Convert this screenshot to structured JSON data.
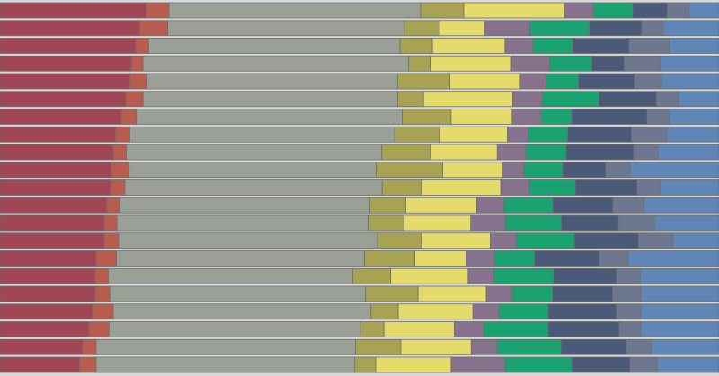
{
  "chart_data": {
    "type": "bar",
    "orientation": "horizontal",
    "stacked": true,
    "normalized_percent": true,
    "title": "",
    "xlabel": "",
    "ylabel": "",
    "xlim": [
      0,
      100
    ],
    "grid": false,
    "legend": "none",
    "colors": [
      "#a14655",
      "#b85c4e",
      "#9aa096",
      "#a8a352",
      "#e5db6a",
      "#87728e",
      "#1aa270",
      "#4a5a78",
      "#6d7890",
      "#5f86b6"
    ],
    "rows": [
      [
        20.4,
        3.1,
        35.0,
        6.0,
        14.0,
        4.0,
        5.5,
        4.8,
        3.0,
        4.2
      ],
      [
        19.5,
        3.9,
        33.0,
        4.9,
        6.3,
        6.3,
        8.3,
        7.3,
        3.0,
        7.8
      ],
      [
        18.9,
        1.8,
        35.0,
        4.5,
        10.1,
        3.9,
        5.5,
        7.9,
        5.6,
        6.9
      ],
      [
        18.3,
        1.6,
        37.0,
        3.0,
        11.3,
        5.3,
        5.9,
        4.5,
        5.1,
        8.1
      ],
      [
        18.1,
        2.4,
        34.9,
        7.3,
        9.8,
        3.6,
        4.5,
        7.8,
        3.8,
        8.0
      ],
      [
        17.5,
        2.4,
        35.4,
        3.6,
        12.4,
        4.1,
        7.9,
        8.0,
        3.1,
        5.6
      ],
      [
        16.9,
        2.1,
        37.0,
        6.8,
        8.5,
        4.0,
        4.3,
        10.5,
        3.1,
        6.9
      ],
      [
        16.1,
        2.0,
        36.9,
        6.3,
        9.4,
        2.9,
        5.5,
        8.9,
        4.9,
        7.3
      ],
      [
        15.8,
        1.8,
        35.6,
        6.8,
        9.3,
        4.0,
        5.6,
        9.4,
        3.4,
        8.5
      ],
      [
        15.5,
        2.5,
        34.4,
        9.3,
        8.4,
        2.9,
        5.4,
        6.0,
        3.4,
        12.4
      ],
      [
        15.4,
        2.0,
        35.8,
        5.4,
        11.1,
        4.0,
        6.4,
        8.6,
        3.3,
        8.1
      ],
      [
        14.9,
        1.8,
        34.9,
        5.0,
        9.9,
        3.8,
        6.8,
        8.4,
        4.3,
        10.5
      ],
      [
        14.5,
        1.8,
        35.1,
        4.9,
        9.3,
        4.8,
        7.8,
        8.0,
        5.0,
        9.0
      ],
      [
        14.5,
        2.0,
        36.0,
        6.1,
        9.6,
        3.6,
        8.1,
        8.9,
        4.8,
        6.4
      ],
      [
        13.4,
        2.8,
        34.5,
        7.0,
        7.1,
        4.0,
        5.5,
        9.1,
        4.0,
        12.6
      ],
      [
        13.3,
        1.8,
        34.1,
        5.3,
        10.8,
        3.6,
        8.3,
        8.8,
        3.3,
        11.0
      ],
      [
        13.3,
        2.0,
        35.6,
        7.3,
        9.5,
        3.6,
        5.6,
        8.4,
        3.9,
        10.9
      ],
      [
        12.9,
        2.9,
        35.9,
        3.8,
        10.4,
        3.6,
        6.9,
        9.5,
        3.4,
        10.9
      ],
      [
        12.4,
        2.8,
        35.0,
        3.3,
        9.8,
        4.1,
        9.0,
        9.9,
        3.0,
        10.9
      ],
      [
        11.5,
        1.9,
        36.1,
        6.3,
        9.8,
        3.6,
        8.9,
        9.1,
        3.5,
        9.4
      ],
      [
        11.1,
        2.3,
        36.0,
        2.9,
        10.5,
        7.5,
        9.3,
        8.1,
        3.8,
        8.6
      ]
    ]
  }
}
